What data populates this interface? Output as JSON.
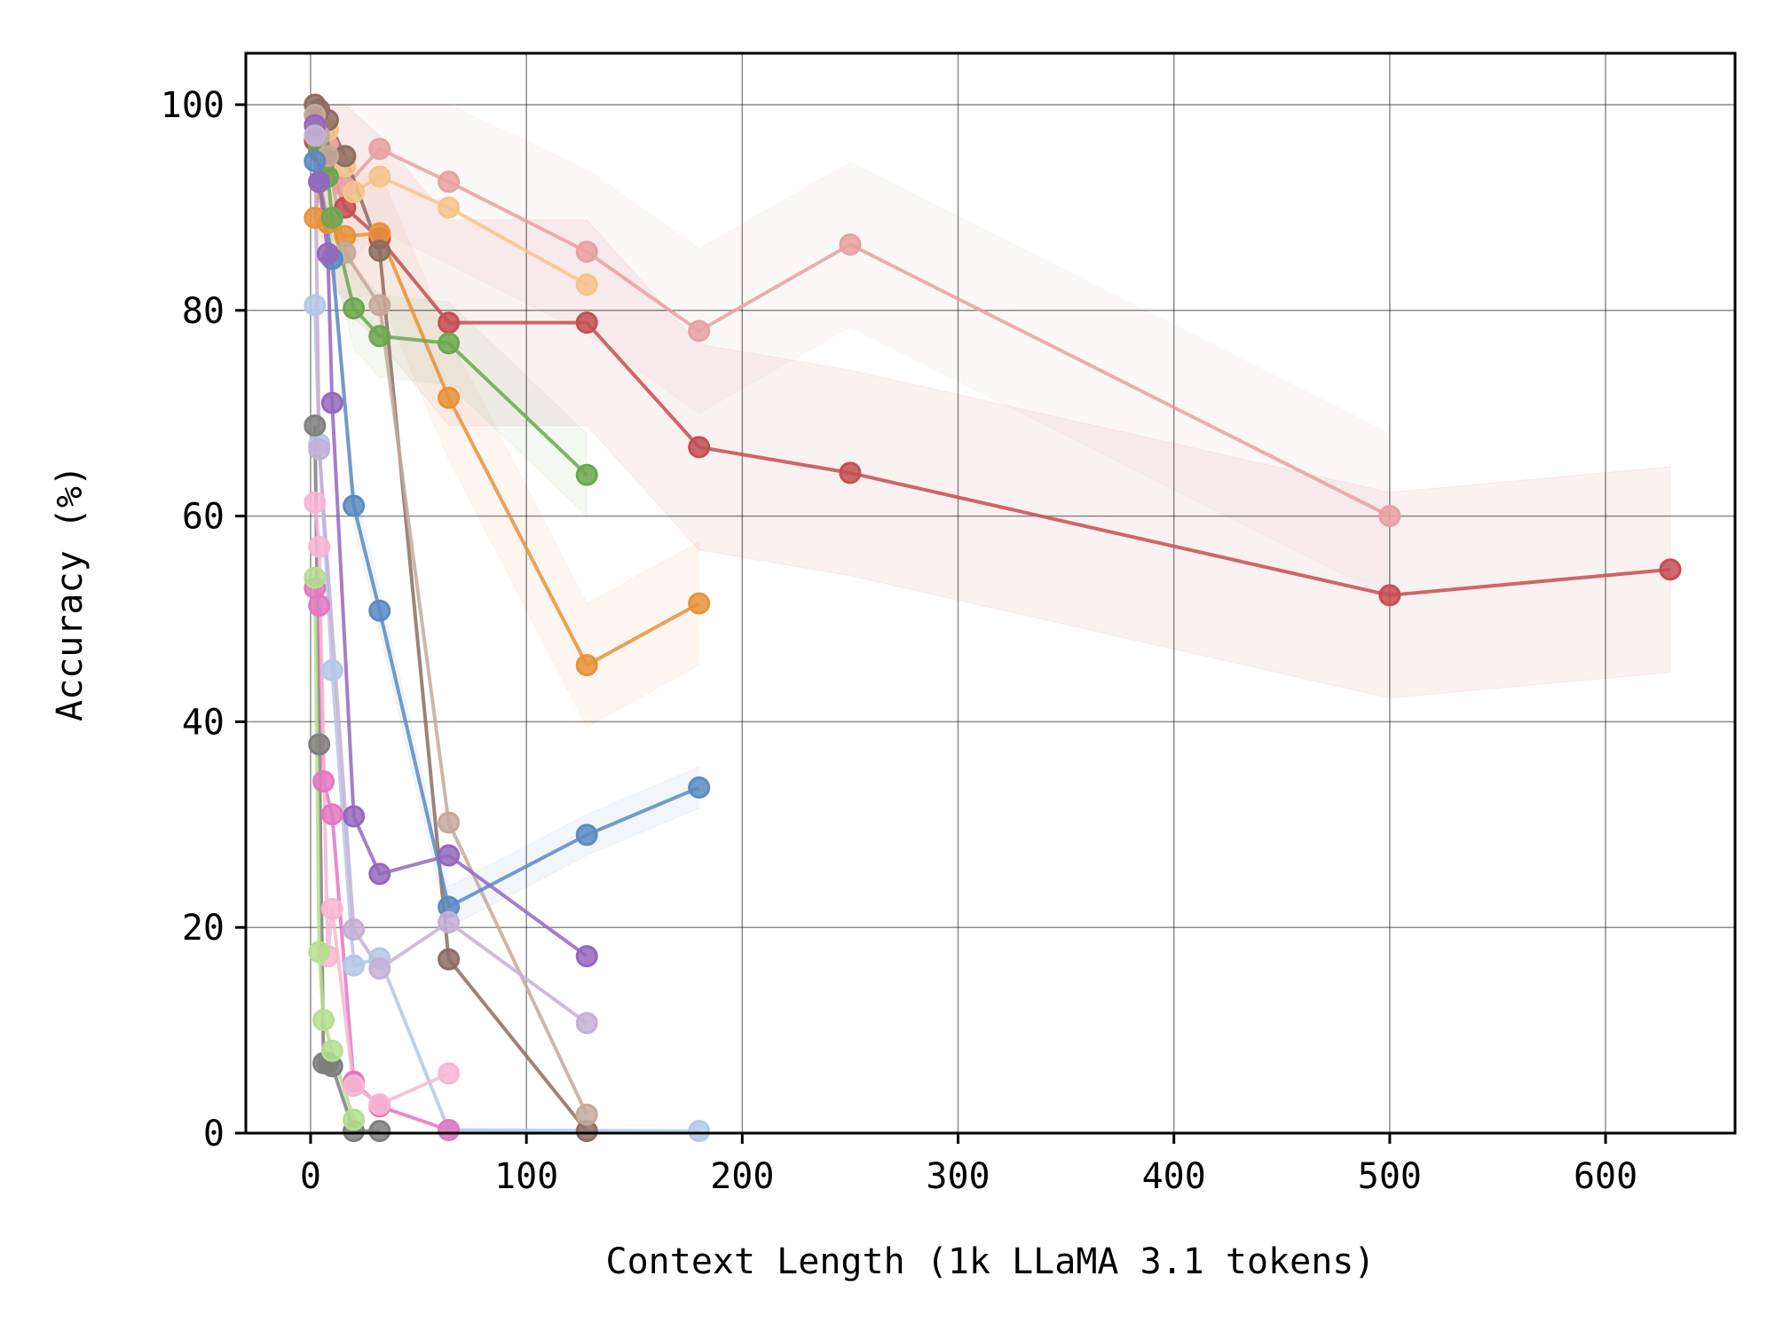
{
  "chart_data": {
    "type": "line",
    "title": "",
    "xlabel": "Context Length (1k LLaMA 3.1 tokens)",
    "ylabel": "Accuracy (%)",
    "xlim": [
      -30,
      660
    ],
    "ylim": [
      0,
      105
    ],
    "xticks": [
      0,
      100,
      200,
      300,
      400,
      500,
      600
    ],
    "yticks": [
      0,
      20,
      40,
      60,
      80,
      100
    ],
    "xtick_labels": [
      "0",
      "100",
      "200",
      "300",
      "400",
      "500",
      "600"
    ],
    "ytick_labels": [
      "0",
      "20",
      "40",
      "60",
      "80",
      "100"
    ],
    "grid": true,
    "legend": "none",
    "series": [
      {
        "color": "#e8a0a2",
        "shade": 4,
        "x": [
          2,
          4,
          8,
          16,
          32,
          64,
          128,
          180,
          250,
          500
        ],
        "y": [
          99,
          97,
          96,
          92,
          95.7,
          92.5,
          85.7,
          78,
          86.4,
          60
        ]
      },
      {
        "color": "#c44e52",
        "shade": 5,
        "x": [
          2,
          4,
          8,
          16,
          32,
          64,
          128,
          180,
          250,
          500,
          630
        ],
        "y": [
          96.5,
          95.5,
          94.5,
          90,
          87,
          78.8,
          78.8,
          66.7,
          64.2,
          52.3,
          54.8
        ]
      },
      {
        "color": "#f5c48a",
        "shade": 0,
        "x": [
          2,
          4,
          8,
          16,
          20,
          32,
          64,
          128
        ],
        "y": [
          100,
          99.5,
          97.5,
          94,
          91.5,
          93,
          90,
          82.5
        ]
      },
      {
        "color": "#e8923a",
        "shade": 3,
        "x": [
          2,
          4,
          8,
          16,
          32,
          64,
          128,
          180
        ],
        "y": [
          89,
          92.5,
          88.5,
          87.2,
          87.5,
          71.5,
          45.5,
          51.5
        ]
      },
      {
        "color": "#6aa84f",
        "shade": 2,
        "x": [
          2,
          4,
          8,
          10,
          20,
          32,
          64,
          128
        ],
        "y": [
          99,
          96,
          93,
          89,
          80.2,
          77.5,
          76.8,
          64
        ]
      },
      {
        "color": "#8c6d62",
        "shade": 0,
        "x": [
          2,
          4,
          8,
          16,
          32,
          64,
          128
        ],
        "y": [
          100,
          99.5,
          98.5,
          95,
          85.8,
          16.9,
          0.2
        ]
      },
      {
        "color": "#c4a99c",
        "shade": 0,
        "x": [
          2,
          4,
          8,
          16,
          32,
          64,
          128
        ],
        "y": [
          99,
          97,
          95,
          85.6,
          80.5,
          30.2,
          1.8
        ]
      },
      {
        "color": "#5b8ac2",
        "shade": 1,
        "x": [
          2,
          4,
          10,
          20,
          32,
          64,
          128,
          180
        ],
        "y": [
          94.5,
          92.5,
          85,
          61,
          50.8,
          22,
          29,
          33.6
        ]
      },
      {
        "color": "#b4c7e7",
        "shade": 0,
        "x": [
          2,
          4,
          10,
          20,
          32,
          64,
          180
        ],
        "y": [
          80.5,
          67,
          45,
          16.3,
          17,
          0.3,
          0.2
        ]
      },
      {
        "color": "#9467bd",
        "shade": 0,
        "x": [
          2,
          4,
          8,
          10,
          20,
          32,
          64,
          128
        ],
        "y": [
          98,
          92.5,
          85.5,
          71,
          30.8,
          25.2,
          27,
          17.2
        ]
      },
      {
        "color": "#c5b0d5",
        "shade": 0,
        "x": [
          2,
          4,
          20,
          32,
          64,
          128
        ],
        "y": [
          97,
          66.5,
          19.8,
          16,
          20.5,
          10.7
        ]
      },
      {
        "color": "#7f7f7f",
        "shade": 0,
        "x": [
          2,
          4,
          6,
          8,
          10,
          20,
          32
        ],
        "y": [
          68.8,
          37.8,
          6.8,
          6.8,
          6.5,
          0.2,
          0.2
        ]
      },
      {
        "color": "#e377c2",
        "shade": 0,
        "x": [
          2,
          4,
          6,
          10,
          20,
          32,
          64
        ],
        "y": [
          53,
          51.3,
          34.2,
          31,
          5,
          2.6,
          0.3
        ]
      },
      {
        "color": "#f7b6d2",
        "shade": 0,
        "x": [
          2,
          4,
          8,
          10,
          20,
          32,
          64
        ],
        "y": [
          61.3,
          57,
          17.2,
          21.8,
          4.6,
          2.8,
          5.8
        ]
      },
      {
        "color": "#b5df8f",
        "shade": 0,
        "x": [
          2,
          4,
          6,
          10,
          20
        ],
        "y": [
          54,
          17.6,
          11,
          8,
          1.3
        ]
      }
    ]
  }
}
